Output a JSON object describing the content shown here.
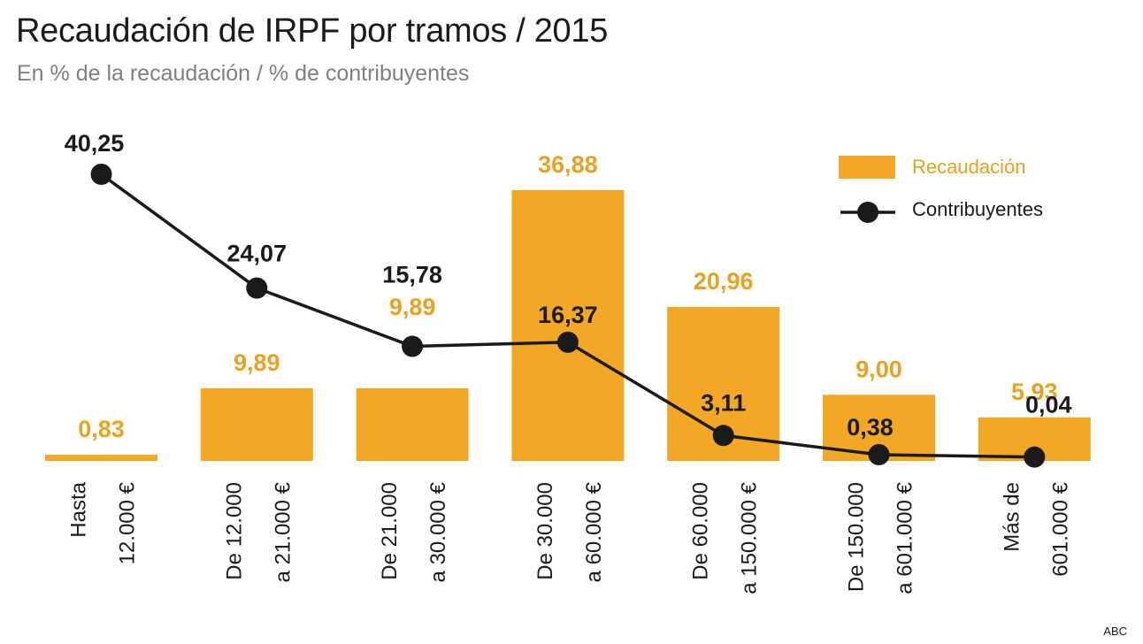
{
  "title": "Recaudación de IRPF por tramos / 2015",
  "subtitle": "En % de la recaudación / % de contribuyentes",
  "source": "ABC",
  "colors": {
    "bar": "#f2a824",
    "barLabel": "#e9a21f",
    "line": "#1a1a1a"
  },
  "chart_data": {
    "type": "bar",
    "categories": [
      "Hasta 12.000 €",
      "De 12.000 a 21.000 €",
      "De 21.000 a 30.000 €",
      "De 30.000 a 60.000 €",
      "De 60.000 a 150.000 €",
      "De 150.000 a 601.000 €",
      "Más de 601.000 €"
    ],
    "category_lines": [
      [
        "Hasta",
        "12.000 €"
      ],
      [
        "De 12.000",
        "a 21.000 €"
      ],
      [
        "De 21.000",
        "a 30.000 €"
      ],
      [
        "De 30.000",
        "a 60.000 €"
      ],
      [
        "De 60.000",
        "a 150.000 €"
      ],
      [
        "De 150.000",
        "a 601.000 €"
      ],
      [
        "Más de",
        "601.000 €"
      ]
    ],
    "series": [
      {
        "name": "Recaudación",
        "type": "bar",
        "values": [
          0.83,
          9.89,
          9.89,
          36.88,
          20.96,
          9.0,
          5.93
        ],
        "labels": [
          "0,83",
          "9,89",
          "9,89",
          "36,88",
          "20,96",
          "9,00",
          "5,93"
        ]
      },
      {
        "name": "Contribuyentes",
        "type": "line",
        "values": [
          40.25,
          24.07,
          15.78,
          16.37,
          3.11,
          0.38,
          0.04
        ],
        "labels": [
          "40,25",
          "24,07",
          "15,78",
          "16,37",
          "3,11",
          "0,38",
          "0,04"
        ]
      }
    ],
    "ylim": [
      0,
      42
    ],
    "grid": false,
    "legend": "top-right"
  }
}
